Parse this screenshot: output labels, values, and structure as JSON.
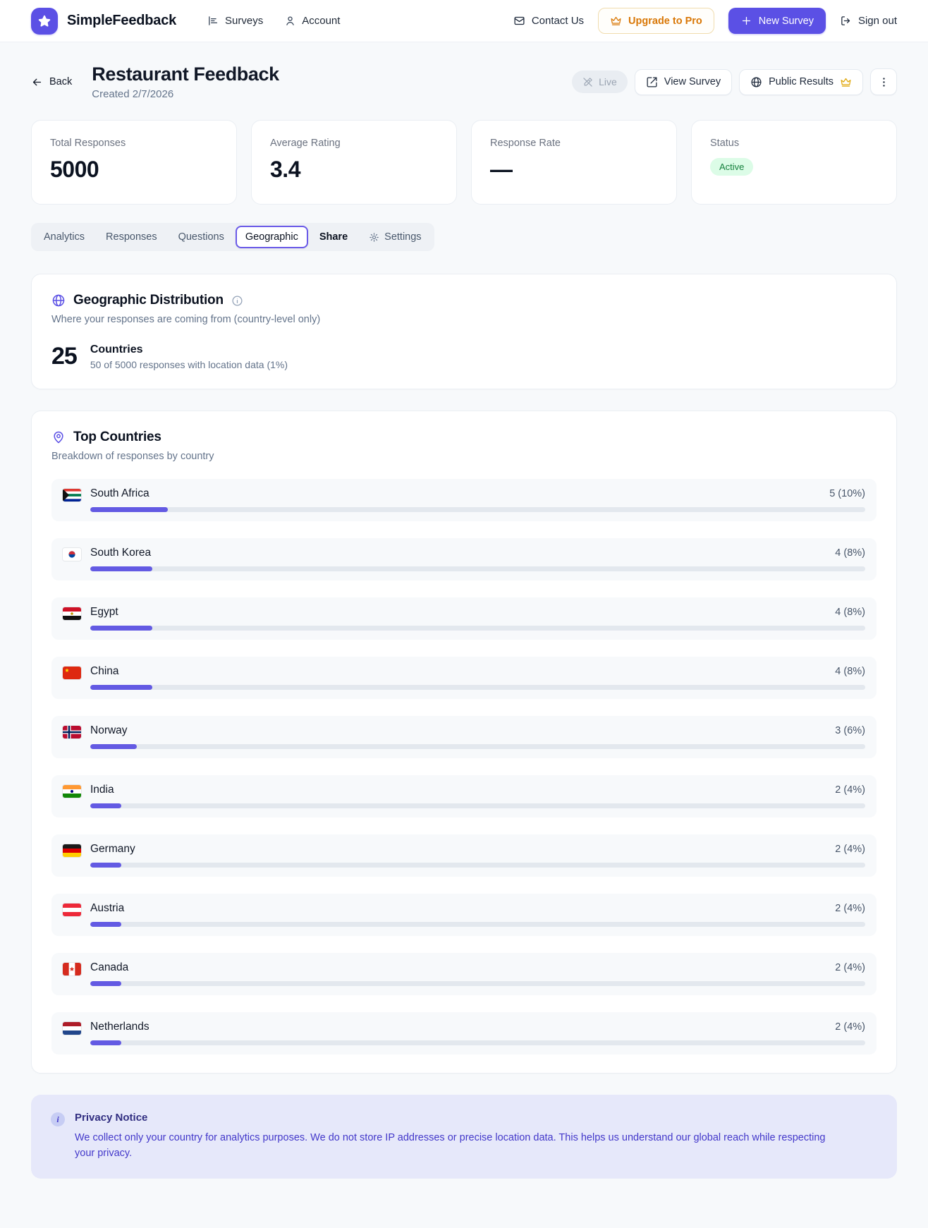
{
  "colors": {
    "accent": "#5b50e5",
    "bar_fill": "#635ae3",
    "upgrade_amber": "#d97706",
    "status_green_bg": "#dcfce7",
    "status_green_text": "#15803d",
    "tab_active_border": "#6a5ae8",
    "privacy_bg": "#e6e8fa",
    "privacy_text": "#4338ca"
  },
  "nav": {
    "brand": "SimpleFeedback",
    "links": [
      {
        "label": "Surveys"
      },
      {
        "label": "Account"
      }
    ],
    "contact": "Contact Us",
    "upgrade": "Upgrade to Pro",
    "new_survey": "New Survey",
    "sign_out": "Sign out"
  },
  "header": {
    "back": "Back",
    "title": "Restaurant Feedback",
    "created": "Created 2/7/2026",
    "live": "Live",
    "view_survey": "View Survey",
    "public_results": "Public Results"
  },
  "stats": [
    {
      "label": "Total Responses",
      "value": "5000"
    },
    {
      "label": "Average Rating",
      "value": "3.4"
    },
    {
      "label": "Response Rate",
      "value": "—"
    },
    {
      "label": "Status",
      "badge": "Active"
    }
  ],
  "tabs": [
    {
      "label": "Analytics"
    },
    {
      "label": "Responses"
    },
    {
      "label": "Questions"
    },
    {
      "label": "Geographic",
      "active": true
    },
    {
      "label": "Share",
      "strong": true
    },
    {
      "label": "Settings",
      "icon": "gear"
    }
  ],
  "geo": {
    "title": "Geographic Distribution",
    "subtitle": "Where your responses are coming from (country-level only)",
    "count": "25",
    "count_label": "Countries",
    "count_sub": "50 of 5000 responses with location data (1%)"
  },
  "top_countries": {
    "title": "Top Countries",
    "subtitle": "Breakdown of responses by country",
    "items": [
      {
        "name": "South Africa",
        "value_label": "5 (10%)",
        "pct": 10,
        "flag_name": "flag-south-africa-icon",
        "flag": {
          "dir": "h",
          "stripes": [
            "#de3831",
            "#ffffff",
            "#007a4d",
            "#ffffff",
            "#002395"
          ],
          "triangle": "#111111"
        }
      },
      {
        "name": "South Korea",
        "value_label": "4 (8%)",
        "pct": 8,
        "flag_name": "flag-south-korea-icon",
        "flag": {
          "dir": "h",
          "stripes": [
            "#ffffff"
          ],
          "taeguk": true
        }
      },
      {
        "name": "Egypt",
        "value_label": "4 (8%)",
        "pct": 8,
        "flag_name": "flag-egypt-icon",
        "flag": {
          "dir": "h",
          "stripes": [
            "#ce1126",
            "#ffffff",
            "#111111"
          ],
          "emblem": {
            "color": "#c09300",
            "r": 1.8
          }
        }
      },
      {
        "name": "China",
        "value_label": "4 (8%)",
        "pct": 8,
        "flag_name": "flag-china-icon",
        "flag": {
          "dir": "h",
          "stripes": [
            "#de2910"
          ],
          "star": {
            "color": "#ffde00"
          }
        }
      },
      {
        "name": "Norway",
        "value_label": "3 (6%)",
        "pct": 6,
        "flag_name": "flag-norway-icon",
        "flag": {
          "dir": "h",
          "stripes": [
            "#ba0c2f"
          ],
          "nordic": {
            "white": "#ffffff",
            "blue": "#00205b"
          }
        }
      },
      {
        "name": "India",
        "value_label": "2 (4%)",
        "pct": 4,
        "flag_name": "flag-india-icon",
        "flag": {
          "dir": "h",
          "stripes": [
            "#ff9933",
            "#ffffff",
            "#138808"
          ],
          "emblem": {
            "color": "#000080",
            "r": 2
          }
        }
      },
      {
        "name": "Germany",
        "value_label": "2 (4%)",
        "pct": 4,
        "flag_name": "flag-germany-icon",
        "flag": {
          "dir": "h",
          "stripes": [
            "#1a1a1a",
            "#dd0000",
            "#ffce00"
          ]
        }
      },
      {
        "name": "Austria",
        "value_label": "2 (4%)",
        "pct": 4,
        "flag_name": "flag-austria-icon",
        "flag": {
          "dir": "h",
          "stripes": [
            "#ed2939",
            "#ffffff",
            "#ed2939"
          ]
        }
      },
      {
        "name": "Canada",
        "value_label": "2 (4%)",
        "pct": 4,
        "flag_name": "flag-canada-icon",
        "flag": {
          "dir": "v",
          "stripes": [
            "#d52b1e",
            "#ffffff",
            "#d52b1e"
          ],
          "maple": "#d52b1e"
        }
      },
      {
        "name": "Netherlands",
        "value_label": "2 (4%)",
        "pct": 4,
        "flag_name": "flag-netherlands-icon",
        "flag": {
          "dir": "h",
          "stripes": [
            "#ae1c28",
            "#ffffff",
            "#21468b"
          ]
        }
      }
    ]
  },
  "privacy": {
    "title": "Privacy Notice",
    "body": "We collect only your country for analytics purposes. We do not store IP addresses or precise location data. This helps us understand our global reach while respecting your privacy."
  }
}
